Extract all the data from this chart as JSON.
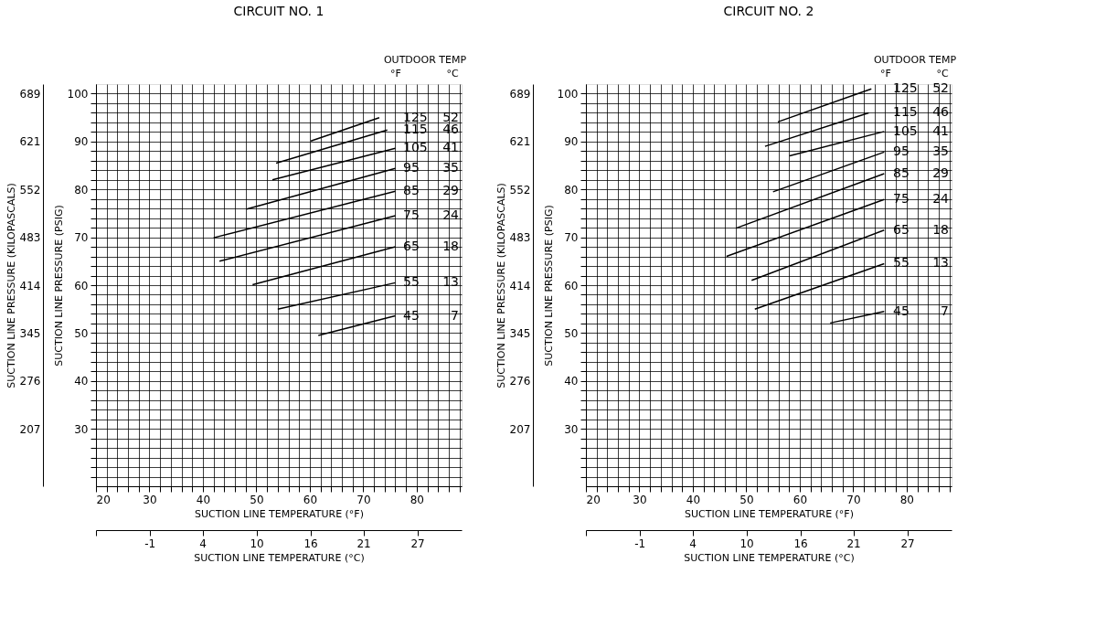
{
  "chart_data": [
    {
      "type": "line",
      "title": "CIRCUIT NO. 1",
      "xlabel": "SUCTION LINE TEMPERATURE (°F)",
      "ylabel": "SUCTION LINE PRESSURE (PSIG)",
      "y2label": "SUCTION LINE PRESSURE (KILOPASCALS)",
      "x2label": "SUCTION LINE TEMPERATURE (°C)",
      "legend_title": "OUTDOOR TEMP",
      "annotations": [
        "°F",
        "°C"
      ],
      "grid": true,
      "xlim": [
        20,
        88.4
      ],
      "ylim": [
        18,
        102
      ],
      "xticks": [
        20,
        {
          "value": 22,
          "label": null
        },
        {
          "value": 24,
          "label": null
        },
        {
          "value": 26,
          "label": null
        },
        {
          "value": 28,
          "label": null
        },
        30,
        {
          "value": 32,
          "label": null
        },
        {
          "value": 34,
          "label": null
        },
        {
          "value": 36,
          "label": null
        },
        {
          "value": 38,
          "label": null
        },
        40,
        {
          "value": 42,
          "label": null
        },
        {
          "value": 44,
          "label": null
        },
        {
          "value": 46,
          "label": null
        },
        {
          "value": 48,
          "label": null
        },
        50,
        {
          "value": 52,
          "label": null
        },
        {
          "value": 54,
          "label": null
        },
        {
          "value": 56,
          "label": null
        },
        {
          "value": 58,
          "label": null
        },
        60,
        {
          "value": 62,
          "label": null
        },
        {
          "value": 64,
          "label": null
        },
        {
          "value": 66,
          "label": null
        },
        {
          "value": 68,
          "label": null
        },
        70,
        {
          "value": 72,
          "label": null
        },
        {
          "value": 74,
          "label": null
        },
        {
          "value": 76,
          "label": null
        },
        {
          "value": 78,
          "label": null
        },
        80,
        {
          "value": 82,
          "label": null
        },
        {
          "value": 84,
          "label": null
        },
        {
          "value": 86,
          "label": null
        },
        {
          "value": 88,
          "label": null
        }
      ],
      "yticks": [
        {
          "value": 20,
          "label": null
        },
        {
          "value": 22,
          "label": null
        },
        {
          "value": 24,
          "label": null
        },
        {
          "value": 26,
          "label": null
        },
        {
          "value": 28,
          "label": null
        },
        30,
        {
          "value": 32,
          "label": null
        },
        {
          "value": 34,
          "label": null
        },
        {
          "value": 36,
          "label": null
        },
        {
          "value": 38,
          "label": null
        },
        40,
        {
          "value": 42,
          "label": null
        },
        {
          "value": 44,
          "label": null
        },
        {
          "value": 46,
          "label": null
        },
        {
          "value": 48,
          "label": null
        },
        50,
        {
          "value": 52,
          "label": null
        },
        {
          "value": 54,
          "label": null
        },
        {
          "value": 56,
          "label": null
        },
        {
          "value": 58,
          "label": null
        },
        60,
        {
          "value": 62,
          "label": null
        },
        {
          "value": 64,
          "label": null
        },
        {
          "value": 66,
          "label": null
        },
        {
          "value": 68,
          "label": null
        },
        70,
        {
          "value": 72,
          "label": null
        },
        {
          "value": 74,
          "label": null
        },
        {
          "value": 76,
          "label": null
        },
        {
          "value": 78,
          "label": null
        },
        80,
        {
          "value": 82,
          "label": null
        },
        {
          "value": 84,
          "label": null
        },
        {
          "value": 86,
          "label": null
        },
        {
          "value": 88,
          "label": null
        },
        90,
        {
          "value": 92,
          "label": null
        },
        {
          "value": 94,
          "label": null
        },
        {
          "value": 96,
          "label": null
        },
        {
          "value": 98,
          "label": null
        },
        100
      ],
      "y2lim": [
        124.1,
        703.3
      ],
      "y2ticks": [
        {
          "value": 689.5,
          "label": "689"
        },
        {
          "value": 620.5,
          "label": "621"
        },
        {
          "value": 551.6,
          "label": "552"
        },
        {
          "value": 482.6,
          "label": "483"
        },
        {
          "value": 413.7,
          "label": "414"
        },
        {
          "value": 344.7,
          "label": "345"
        },
        {
          "value": 275.8,
          "label": "276"
        },
        {
          "value": 206.8,
          "label": "207"
        }
      ],
      "x2lim": [
        -6.67,
        31.3
      ],
      "x2ticks": [
        {
          "value": -6.67,
          "label": null
        },
        {
          "value": -1.1,
          "label": "-1"
        },
        {
          "value": 4.4,
          "label": "4"
        },
        {
          "value": 10,
          "label": "10"
        },
        {
          "value": 15.6,
          "label": "16"
        },
        {
          "value": 21.1,
          "label": "21"
        },
        {
          "value": 26.7,
          "label": "27"
        }
      ],
      "series": [
        {
          "name": "125 52",
          "color": "#000000",
          "x": [
            60.2,
            73.0
          ],
          "values": [
            90.1,
            95.0
          ]
        },
        {
          "name": "115 46",
          "color": "#000000",
          "x": [
            53.7,
            74.5
          ],
          "values": [
            85.5,
            92.4
          ]
        },
        {
          "name": "105 41",
          "color": "#000000",
          "x": [
            53.0,
            76.0
          ],
          "values": [
            82.0,
            88.6
          ]
        },
        {
          "name": "95 35",
          "color": "#000000",
          "x": [
            48.2,
            76.0
          ],
          "values": [
            75.9,
            84.4
          ]
        },
        {
          "name": "85 29",
          "color": "#000000",
          "x": [
            42.0,
            76.0
          ],
          "values": [
            69.9,
            79.6
          ]
        },
        {
          "name": "75 24",
          "color": "#000000",
          "x": [
            43.1,
            76.0
          ],
          "values": [
            65.0,
            74.5
          ]
        },
        {
          "name": "65 18",
          "color": "#000000",
          "x": [
            49.3,
            76.0
          ],
          "values": [
            60.1,
            68.0
          ]
        },
        {
          "name": "55 13",
          "color": "#000000",
          "x": [
            54.0,
            76.0
          ],
          "values": [
            55.0,
            60.5
          ]
        },
        {
          "name": "45 7",
          "color": "#000000",
          "x": [
            61.6,
            76.0
          ],
          "values": [
            49.5,
            53.6
          ]
        }
      ]
    },
    {
      "type": "line",
      "title": "CIRCUIT NO. 2",
      "xlabel": "SUCTION LINE TEMPERATURE (°F)",
      "ylabel": "SUCTION LINE PRESSURE (PSIG)",
      "y2label": "SUCTION LINE PRESSURE (KILOPASCALS)",
      "x2label": "SUCTION LINE TEMPERATURE (°C)",
      "legend_title": "OUTDOOR TEMP",
      "annotations": [
        "°F",
        "°C"
      ],
      "grid": true,
      "xlim": [
        20,
        88.4
      ],
      "ylim": [
        18,
        102
      ],
      "xticks": [
        20,
        {
          "value": 22,
          "label": null
        },
        {
          "value": 24,
          "label": null
        },
        {
          "value": 26,
          "label": null
        },
        {
          "value": 28,
          "label": null
        },
        30,
        {
          "value": 32,
          "label": null
        },
        {
          "value": 34,
          "label": null
        },
        {
          "value": 36,
          "label": null
        },
        {
          "value": 38,
          "label": null
        },
        40,
        {
          "value": 42,
          "label": null
        },
        {
          "value": 44,
          "label": null
        },
        {
          "value": 46,
          "label": null
        },
        {
          "value": 48,
          "label": null
        },
        50,
        {
          "value": 52,
          "label": null
        },
        {
          "value": 54,
          "label": null
        },
        {
          "value": 56,
          "label": null
        },
        {
          "value": 58,
          "label": null
        },
        60,
        {
          "value": 62,
          "label": null
        },
        {
          "value": 64,
          "label": null
        },
        {
          "value": 66,
          "label": null
        },
        {
          "value": 68,
          "label": null
        },
        70,
        {
          "value": 72,
          "label": null
        },
        {
          "value": 74,
          "label": null
        },
        {
          "value": 76,
          "label": null
        },
        {
          "value": 78,
          "label": null
        },
        80,
        {
          "value": 82,
          "label": null
        },
        {
          "value": 84,
          "label": null
        },
        {
          "value": 86,
          "label": null
        },
        {
          "value": 88,
          "label": null
        }
      ],
      "yticks": [
        {
          "value": 20,
          "label": null
        },
        {
          "value": 22,
          "label": null
        },
        {
          "value": 24,
          "label": null
        },
        {
          "value": 26,
          "label": null
        },
        {
          "value": 28,
          "label": null
        },
        30,
        {
          "value": 32,
          "label": null
        },
        {
          "value": 34,
          "label": null
        },
        {
          "value": 36,
          "label": null
        },
        {
          "value": 38,
          "label": null
        },
        40,
        {
          "value": 42,
          "label": null
        },
        {
          "value": 44,
          "label": null
        },
        {
          "value": 46,
          "label": null
        },
        {
          "value": 48,
          "label": null
        },
        50,
        {
          "value": 52,
          "label": null
        },
        {
          "value": 54,
          "label": null
        },
        {
          "value": 56,
          "label": null
        },
        {
          "value": 58,
          "label": null
        },
        60,
        {
          "value": 62,
          "label": null
        },
        {
          "value": 64,
          "label": null
        },
        {
          "value": 66,
          "label": null
        },
        {
          "value": 68,
          "label": null
        },
        70,
        {
          "value": 72,
          "label": null
        },
        {
          "value": 74,
          "label": null
        },
        {
          "value": 76,
          "label": null
        },
        {
          "value": 78,
          "label": null
        },
        80,
        {
          "value": 82,
          "label": null
        },
        {
          "value": 84,
          "label": null
        },
        {
          "value": 86,
          "label": null
        },
        {
          "value": 88,
          "label": null
        },
        90,
        {
          "value": 92,
          "label": null
        },
        {
          "value": 94,
          "label": null
        },
        {
          "value": 96,
          "label": null
        },
        {
          "value": 98,
          "label": null
        },
        100
      ],
      "y2lim": [
        124.1,
        703.3
      ],
      "y2ticks": [
        {
          "value": 689.5,
          "label": "689"
        },
        {
          "value": 620.5,
          "label": "621"
        },
        {
          "value": 551.6,
          "label": "552"
        },
        {
          "value": 482.6,
          "label": "483"
        },
        {
          "value": 413.7,
          "label": "414"
        },
        {
          "value": 344.7,
          "label": "345"
        },
        {
          "value": 275.8,
          "label": "276"
        },
        {
          "value": 206.8,
          "label": "207"
        }
      ],
      "x2lim": [
        -6.67,
        31.3
      ],
      "x2ticks": [
        {
          "value": -6.67,
          "label": null
        },
        {
          "value": -1.1,
          "label": "-1"
        },
        {
          "value": 4.4,
          "label": "4"
        },
        {
          "value": 10,
          "label": "10"
        },
        {
          "value": 15.6,
          "label": "16"
        },
        {
          "value": 21.1,
          "label": "21"
        },
        {
          "value": 26.7,
          "label": "27"
        }
      ],
      "series": [
        {
          "name": "125 52",
          "color": "#000000",
          "x": [
            55.9,
            73.4
          ],
          "values": [
            94.1,
            101.0
          ]
        },
        {
          "name": "115 46",
          "color": "#000000",
          "x": [
            53.5,
            72.9
          ],
          "values": [
            89.0,
            96.0
          ]
        },
        {
          "name": "105 41",
          "color": "#000000",
          "x": [
            58.1,
            75.8
          ],
          "values": [
            87.0,
            92.1
          ]
        },
        {
          "name": "95 35",
          "color": "#000000",
          "x": [
            55.0,
            75.8
          ],
          "values": [
            79.5,
            87.8
          ]
        },
        {
          "name": "85 29",
          "color": "#000000",
          "x": [
            48.1,
            75.8
          ],
          "values": [
            71.9,
            83.3
          ]
        },
        {
          "name": "75 24",
          "color": "#000000",
          "x": [
            46.3,
            75.8
          ],
          "values": [
            66.0,
            77.9
          ]
        },
        {
          "name": "65 18",
          "color": "#000000",
          "x": [
            51.0,
            75.8
          ],
          "values": [
            61.0,
            71.5
          ]
        },
        {
          "name": "55 13",
          "color": "#000000",
          "x": [
            51.6,
            75.8
          ],
          "values": [
            55.0,
            64.5
          ]
        },
        {
          "name": "45 7",
          "color": "#000000",
          "x": [
            65.7,
            75.8
          ],
          "values": [
            52.1,
            54.5
          ]
        }
      ]
    }
  ]
}
